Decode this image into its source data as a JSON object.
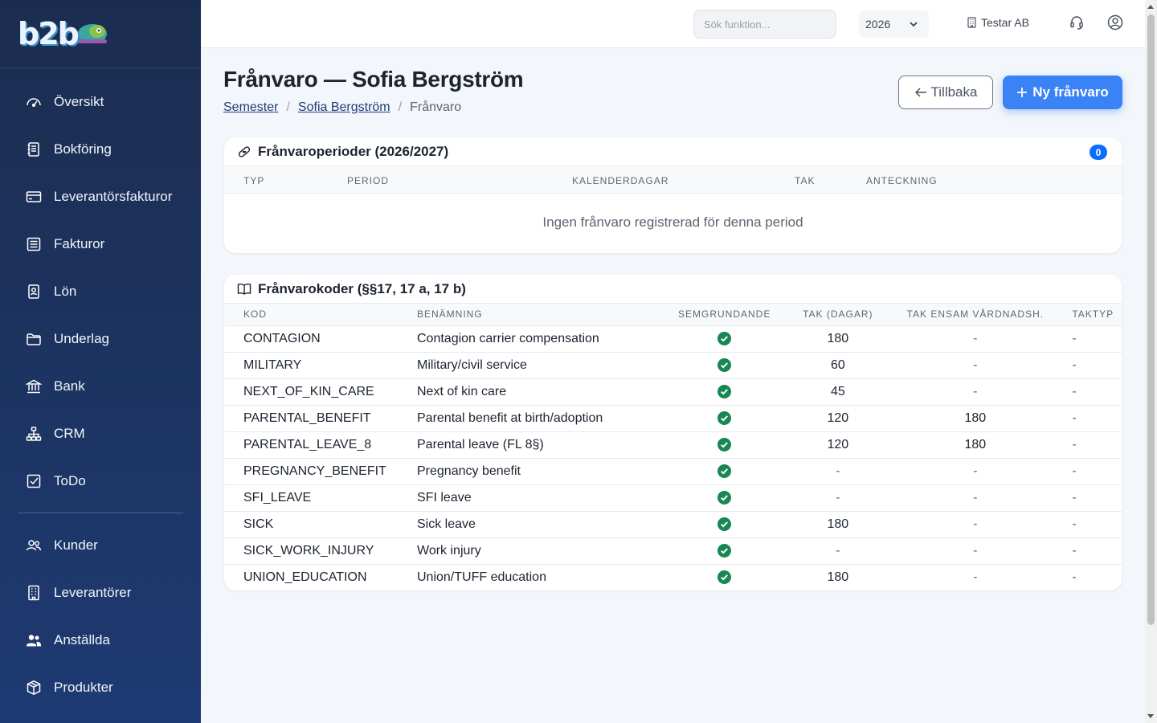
{
  "app": {
    "logo": "b2b"
  },
  "sidebar": {
    "items": [
      {
        "label": "Översikt",
        "icon": "gauge-icon"
      },
      {
        "label": "Bokföring",
        "icon": "journal-icon"
      },
      {
        "label": "Leverantörsfakturor",
        "icon": "credit-card-icon"
      },
      {
        "label": "Fakturor",
        "icon": "invoice-icon"
      },
      {
        "label": "Lön",
        "icon": "badge-icon"
      },
      {
        "label": "Underlag",
        "icon": "folder-icon"
      },
      {
        "label": "Bank",
        "icon": "bank-icon"
      },
      {
        "label": "CRM",
        "icon": "diagram-icon"
      },
      {
        "label": "ToDo",
        "icon": "check-square-icon"
      }
    ],
    "items2": [
      {
        "label": "Kunder",
        "icon": "people-icon"
      },
      {
        "label": "Leverantörer",
        "icon": "building-icon"
      },
      {
        "label": "Anställda",
        "icon": "people-fill-icon"
      },
      {
        "label": "Produkter",
        "icon": "box-icon"
      }
    ]
  },
  "topbar": {
    "search_placeholder": "Sök funktion...",
    "year": "2026",
    "company": "Testar AB"
  },
  "page": {
    "title": "Frånvaro — Sofia Bergström",
    "breadcrumb": [
      "Semester",
      "Sofia Bergström",
      "Frånvaro"
    ],
    "back_label": "Tillbaka",
    "new_label": "Ny frånvaro"
  },
  "periods": {
    "title": "Frånvaroperioder (2026/2027)",
    "count": "0",
    "columns": [
      "TYP",
      "PERIOD",
      "KALENDERDAGAR",
      "TAK",
      "ANTECKNING"
    ],
    "empty_text": "Ingen frånvaro registrerad för denna period"
  },
  "codes": {
    "title": "Frånvarokoder (§§17, 17 a, 17 b)",
    "columns": [
      "KOD",
      "BENÄMNING",
      "SEMGRUNDANDE",
      "TAK (DAGAR)",
      "TAK ENSAM VÅRDNADSH.",
      "TAKTYP"
    ],
    "rows": [
      {
        "code": "CONTAGION",
        "name": "Contagion carrier compensation",
        "sem": true,
        "tak": "180",
        "ensam": "-",
        "taktyp": "-"
      },
      {
        "code": "MILITARY",
        "name": "Military/civil service",
        "sem": true,
        "tak": "60",
        "ensam": "-",
        "taktyp": "-"
      },
      {
        "code": "NEXT_OF_KIN_CARE",
        "name": "Next of kin care",
        "sem": true,
        "tak": "45",
        "ensam": "-",
        "taktyp": "-"
      },
      {
        "code": "PARENTAL_BENEFIT",
        "name": "Parental benefit at birth/adoption",
        "sem": true,
        "tak": "120",
        "ensam": "180",
        "taktyp": "-"
      },
      {
        "code": "PARENTAL_LEAVE_8",
        "name": "Parental leave (FL 8§)",
        "sem": true,
        "tak": "120",
        "ensam": "180",
        "taktyp": "-"
      },
      {
        "code": "PREGNANCY_BENEFIT",
        "name": "Pregnancy benefit",
        "sem": true,
        "tak": "-",
        "ensam": "-",
        "taktyp": "-"
      },
      {
        "code": "SFI_LEAVE",
        "name": "SFI leave",
        "sem": true,
        "tak": "-",
        "ensam": "-",
        "taktyp": "-"
      },
      {
        "code": "SICK",
        "name": "Sick leave",
        "sem": true,
        "tak": "180",
        "ensam": "-",
        "taktyp": "-"
      },
      {
        "code": "SICK_WORK_INJURY",
        "name": "Work injury",
        "sem": true,
        "tak": "-",
        "ensam": "-",
        "taktyp": "-"
      },
      {
        "code": "UNION_EDUCATION",
        "name": "Union/TUFF education",
        "sem": true,
        "tak": "180",
        "ensam": "-",
        "taktyp": "-"
      }
    ]
  },
  "colors": {
    "sidebar_top": "#1b2d4f",
    "sidebar_bottom": "#1e3a73",
    "primary": "#3b82f6",
    "check": "#198754"
  }
}
